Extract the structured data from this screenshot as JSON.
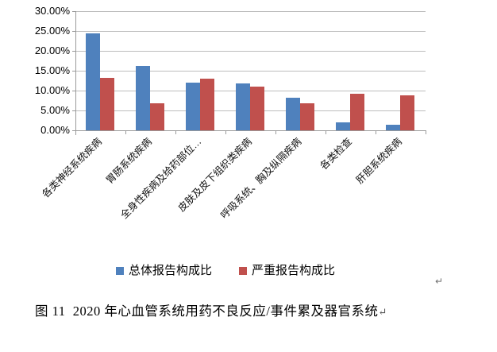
{
  "figure": {
    "caption": "图 11  2020 年心血管系统用药不良反应/事件累及器官系统",
    "paragraph_mark": "↵",
    "floating_paragraph_mark": "↵"
  },
  "chart_data": {
    "type": "bar",
    "title": "",
    "xlabel": "",
    "ylabel": "",
    "categories": [
      "各类神经系统疾病",
      "胃肠系统疾病",
      "全身性疾病及给药部位…",
      "皮肤及皮下组织类疾病",
      "呼吸系统、胸及纵隔疾病",
      "各类检查",
      "肝胆系统疾病"
    ],
    "series": [
      {
        "name": "总体报告构成比",
        "color": "#4F81BD",
        "values": [
          24.5,
          16.3,
          12.1,
          11.9,
          8.3,
          2.1,
          1.5
        ]
      },
      {
        "name": "严重报告构成比",
        "color": "#C0504D",
        "values": [
          13.3,
          6.9,
          13.0,
          11.0,
          6.8,
          9.3,
          8.9
        ]
      }
    ],
    "ylim": [
      0,
      30
    ],
    "y_ticks": [
      "30.00%",
      "25.00%",
      "20.00%",
      "15.00%",
      "10.00%",
      "5.00%",
      "0.00%"
    ],
    "y_tick_values": [
      30,
      25,
      20,
      15,
      10,
      5,
      0
    ],
    "grid": true,
    "legend_position": "bottom"
  },
  "colors": {
    "gridline": "#BDBDBD",
    "axis": "#9A9A9A",
    "text": "#000000"
  }
}
